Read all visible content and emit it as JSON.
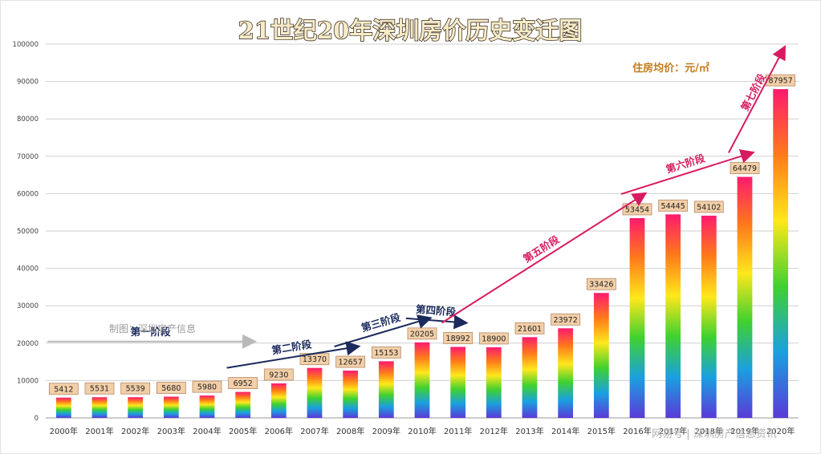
{
  "chart_data": {
    "type": "bar",
    "title": "21世纪20年深圳房价历史变迁图",
    "subtitle": "住房均价：元/㎡",
    "credit": "制图：深圳房产信息",
    "watermark": "网易号 | 深圳房产信息资讯",
    "categories": [
      "2000年",
      "2001年",
      "2002年",
      "2003年",
      "2004年",
      "2005年",
      "2006年",
      "2007年",
      "2008年",
      "2009年",
      "2010年",
      "2011年",
      "2012年",
      "2013年",
      "2014年",
      "2015年",
      "2016年",
      "2017年",
      "2018年",
      "2019年",
      "2020年"
    ],
    "values": [
      5412,
      5531,
      5539,
      5680,
      5980,
      6952,
      9230,
      13370,
      12657,
      15153,
      20205,
      18992,
      18900,
      21601,
      23972,
      33426,
      53454,
      54445,
      54102,
      64479,
      87957
    ],
    "ylim": [
      0,
      100000
    ],
    "yticks": [
      0,
      10000,
      20000,
      30000,
      40000,
      50000,
      60000,
      70000,
      80000,
      90000,
      100000
    ],
    "grid": true,
    "stages": [
      {
        "label": "第一阶段",
        "from": 0,
        "to": 5,
        "color": "#1b2a5c"
      },
      {
        "label": "第二阶段",
        "from": 5,
        "to": 8,
        "color": "#1b2a5c"
      },
      {
        "label": "第三阶段",
        "from": 8,
        "to": 10,
        "color": "#1b2a5c"
      },
      {
        "label": "第四阶段",
        "from": 10,
        "to": 11,
        "color": "#1b2a5c"
      },
      {
        "label": "第五阶段",
        "from": 11,
        "to": 16,
        "color": "#d81b60"
      },
      {
        "label": "第六阶段",
        "from": 16,
        "to": 19,
        "color": "#d81b60"
      },
      {
        "label": "第七阶段",
        "from": 19,
        "to": 20,
        "color": "#d81b60"
      }
    ],
    "colors": {
      "gridline": "#cfcfcf",
      "label_box_fill": "#f3cfa8",
      "label_box_stroke": "#b38a66",
      "subtitle": "#c57a1c",
      "title_fill": "#f5ebc8",
      "title_stroke": "#2b1a0a"
    }
  }
}
